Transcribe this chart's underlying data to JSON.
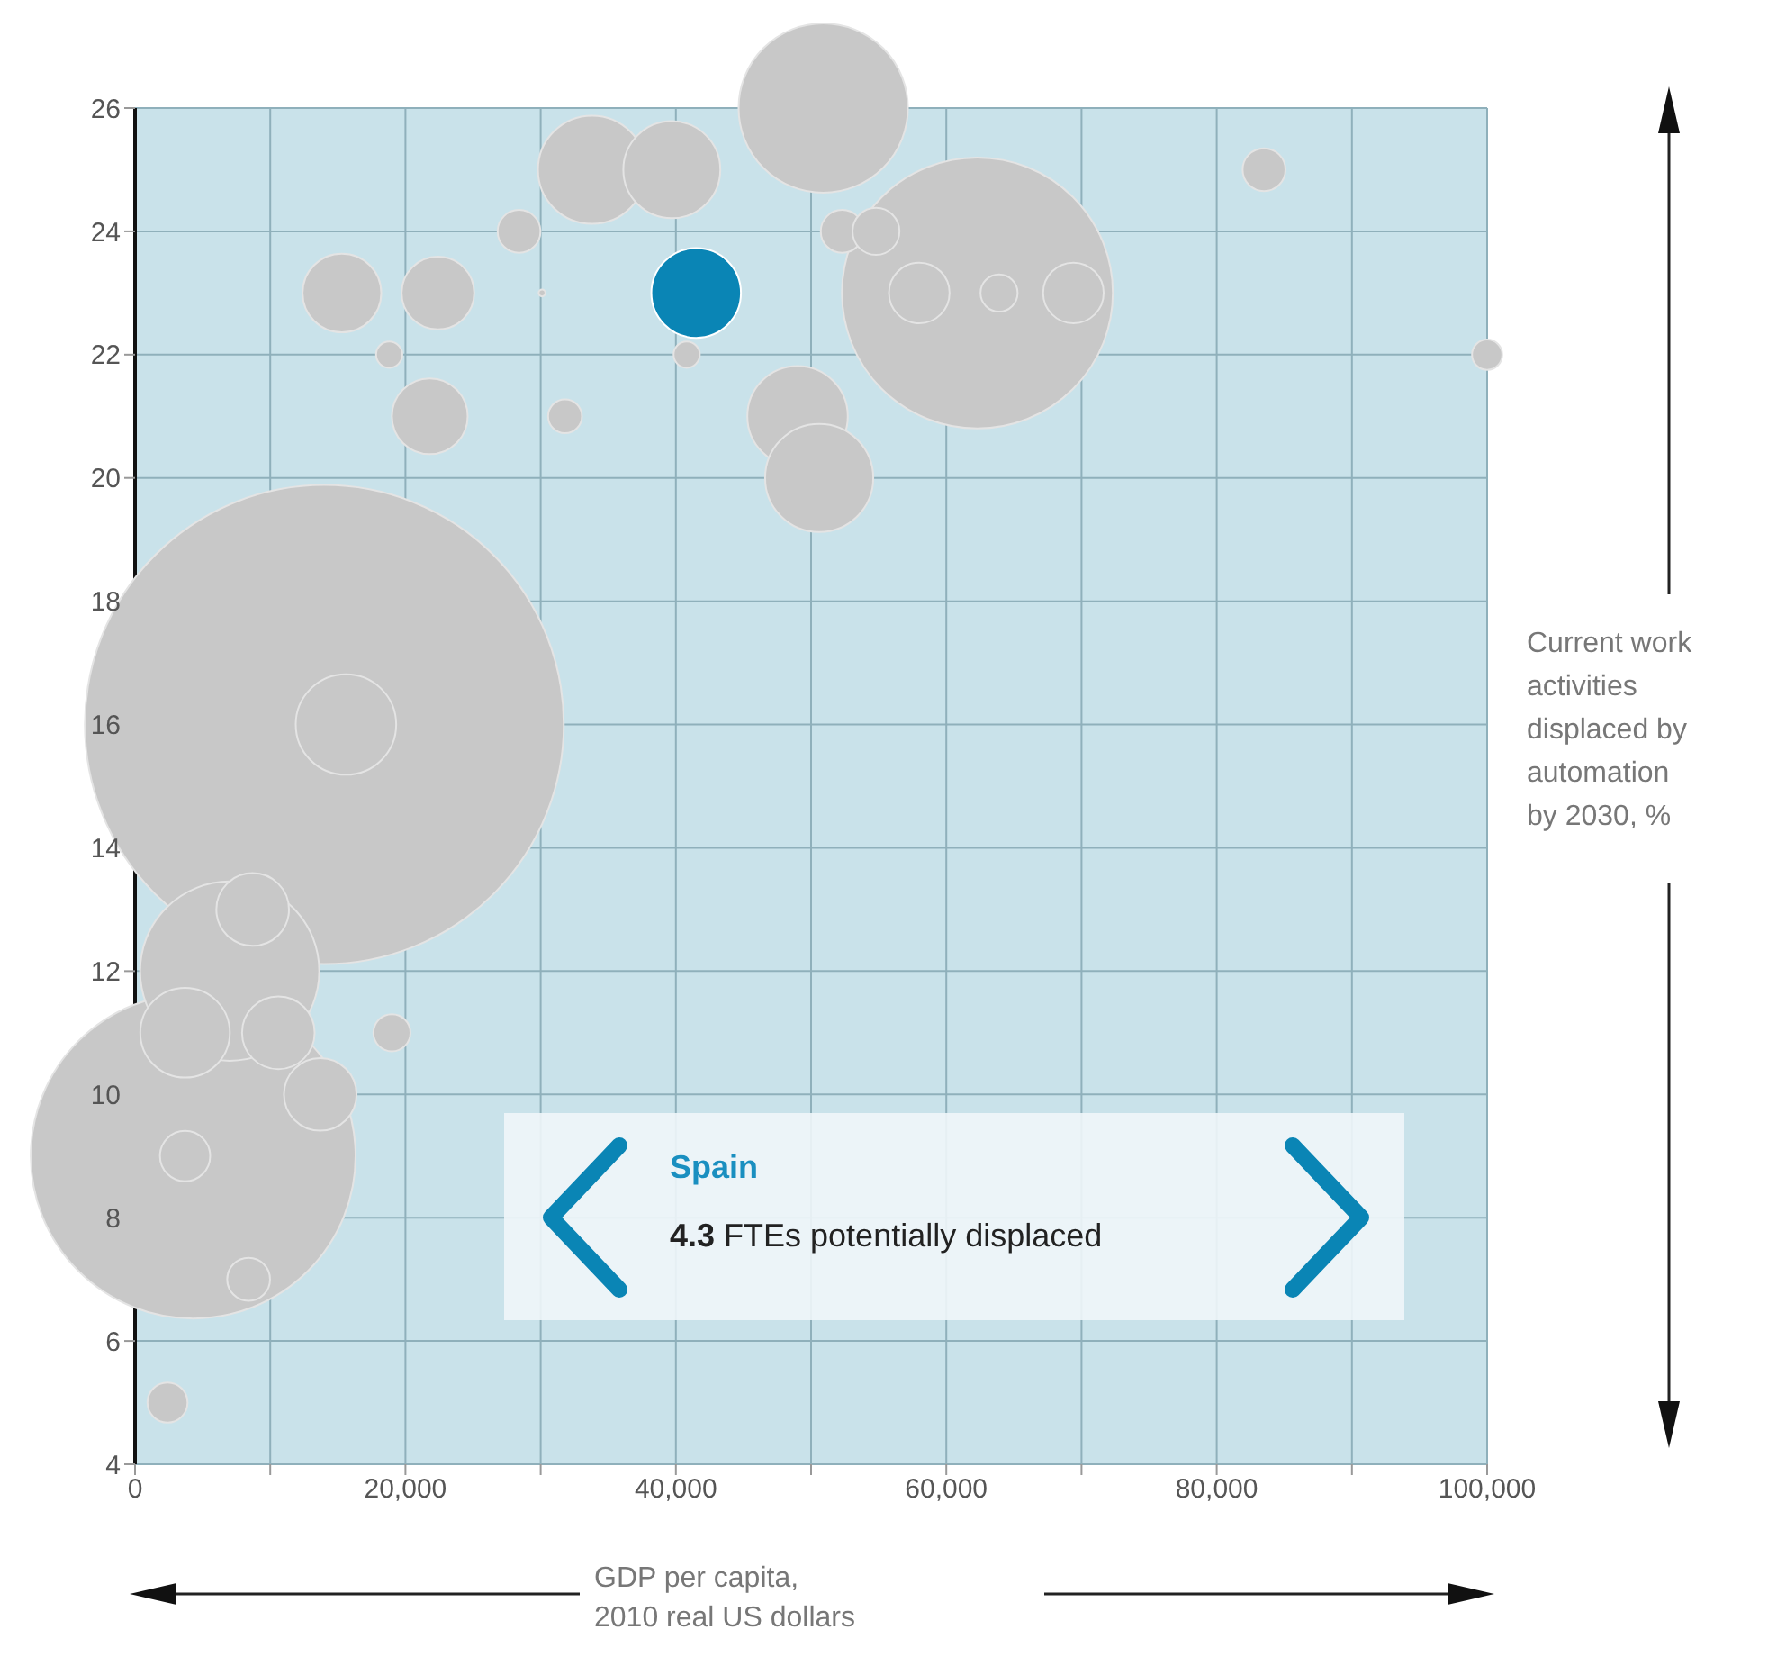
{
  "chart_data": {
    "type": "bubble",
    "xlabel": "GDP per capita,\n2010 real US dollars",
    "ylabel": "Current work\nactivities\ndisplaced by\nautomation\nby 2030, %",
    "xlim": [
      0,
      100000
    ],
    "ylim": [
      4,
      26
    ],
    "xticks": [
      0,
      {
        "value": 10000,
        "label": null
      },
      {
        "value": 20000,
        "label": "20,000"
      },
      {
        "value": 30000,
        "label": null
      },
      {
        "value": 40000,
        "label": "40,000"
      },
      {
        "value": 50000,
        "label": null
      },
      {
        "value": 60000,
        "label": "60,000"
      },
      {
        "value": 70000,
        "label": null
      },
      {
        "value": 80000,
        "label": "80,000"
      },
      {
        "value": 90000,
        "label": null
      },
      {
        "value": 100000,
        "label": "100,000"
      }
    ],
    "yticks": [
      4,
      6,
      8,
      10,
      12,
      14,
      16,
      18,
      20,
      22,
      24,
      26
    ],
    "grid": true,
    "marker": "circle",
    "annotations": [
      "Spain",
      "4.3 FTEs potentially displaced"
    ],
    "series": [
      {
        "color": "#c8c8c8",
        "x": [
          14000,
          4300,
          7000,
          62300,
          50900,
          33800,
          39700,
          15300,
          22400,
          28400,
          30100,
          18800,
          21800,
          31800,
          40800,
          49000,
          50600,
          52300,
          54800,
          58000,
          63900,
          69400,
          83500,
          100000,
          2400,
          19000,
          15600,
          8700,
          3700,
          10600,
          13700,
          3700,
          8400
        ],
        "values": [
          16,
          9,
          12,
          23,
          26,
          25,
          25,
          23,
          23,
          24,
          23,
          22,
          21,
          21,
          22,
          21,
          20,
          24,
          24,
          23,
          23,
          23,
          25,
          22,
          5,
          11,
          16,
          13,
          11,
          11,
          10,
          9,
          7
        ],
        "sizes": [
          1,
          0.46,
          0.14,
          0.32,
          0.125,
          0.051,
          0.041,
          0.027,
          0.023,
          0.008,
          0.0002,
          0.003,
          0.025,
          0.005,
          0.003,
          0.044,
          0.051,
          0.008,
          0.0096,
          0.016,
          0.006,
          0.016,
          0.008,
          0.004,
          0.007,
          0.006,
          0.044,
          0.023,
          0.035,
          0.023,
          0.023,
          0.011,
          0.008
        ]
      },
      {
        "color": "#0a85b5",
        "x": [
          41500
        ],
        "values": [
          23
        ],
        "sizes": [
          0.035
        ]
      }
    ]
  }
}
